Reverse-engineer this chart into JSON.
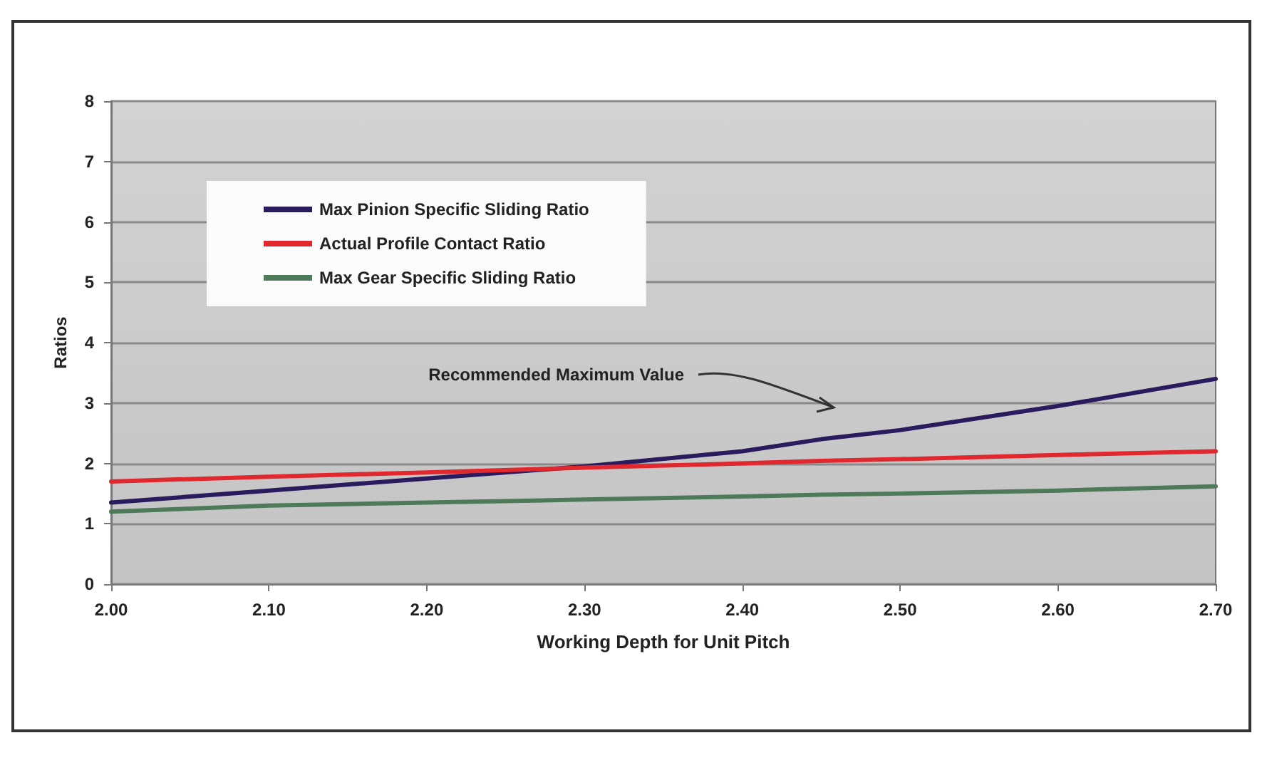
{
  "chart_data": {
    "type": "line",
    "xlabel": "Working Depth for Unit Pitch",
    "ylabel": "Ratios",
    "x": [
      2.0,
      2.1,
      2.2,
      2.3,
      2.4,
      2.45,
      2.5,
      2.6,
      2.7
    ],
    "series": [
      {
        "name": "Max Pinion Specific Sliding Ratio",
        "color": "#2a1a5e",
        "values": [
          1.35,
          1.55,
          1.75,
          1.95,
          2.2,
          2.4,
          2.55,
          2.95,
          3.4
        ]
      },
      {
        "name": "Actual Profile Contact Ratio",
        "color": "#e0282e",
        "values": [
          1.7,
          1.78,
          1.85,
          1.93,
          2.0,
          2.04,
          2.07,
          2.14,
          2.2
        ]
      },
      {
        "name": "Max Gear Specific Sliding Ratio",
        "color": "#4f7a5a",
        "values": [
          1.2,
          1.3,
          1.35,
          1.4,
          1.45,
          1.48,
          1.5,
          1.55,
          1.62
        ]
      }
    ],
    "xlim": [
      2.0,
      2.7
    ],
    "xticks": [
      {
        "value": 2.0,
        "label": "2.00"
      },
      {
        "value": 2.1,
        "label": "2.10"
      },
      {
        "value": 2.2,
        "label": "2.20"
      },
      {
        "value": 2.3,
        "label": "2.30"
      },
      {
        "value": 2.4,
        "label": "2.40"
      },
      {
        "value": 2.5,
        "label": "2.50"
      },
      {
        "value": 2.6,
        "label": "2.60"
      },
      {
        "value": 2.7,
        "label": "2.70"
      }
    ],
    "ylim": [
      0,
      8
    ],
    "yticks": [
      0,
      1,
      2,
      3,
      4,
      5,
      6,
      7,
      8
    ],
    "annotations": [
      "Recommended Maximum Value"
    ],
    "grid": "y",
    "legend": "top left",
    "marker": "none",
    "line_style": "solid"
  }
}
